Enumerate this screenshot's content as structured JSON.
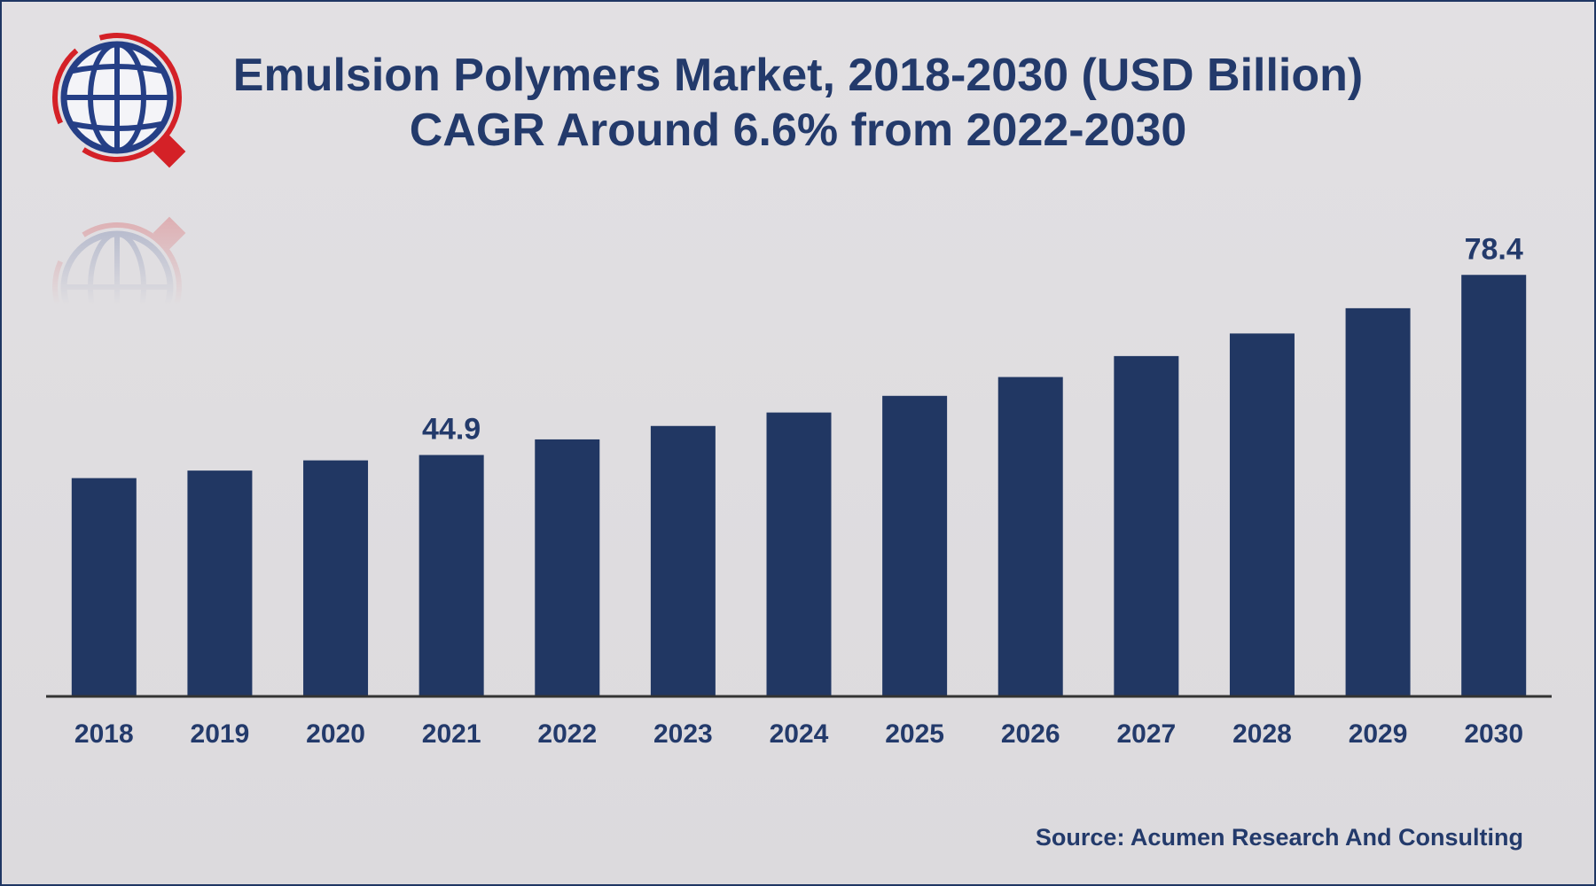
{
  "colors": {
    "bar": "#213763",
    "text": "#233a6b",
    "logo_blue": "#253f86",
    "logo_red": "#d42127",
    "axis": "#333333"
  },
  "logo_icon": "globe-logo-icon",
  "chart_data": {
    "type": "bar",
    "title": "Emulsion Polymers Market, 2018-2030 (USD Billion)",
    "subtitle": "CAGR Around 6.6% from 2022-2030",
    "categories": [
      "2018",
      "2019",
      "2020",
      "2021",
      "2022",
      "2023",
      "2024",
      "2025",
      "2026",
      "2027",
      "2028",
      "2029",
      "2030"
    ],
    "values": [
      40.6,
      42.0,
      43.9,
      44.9,
      47.8,
      50.3,
      52.8,
      55.9,
      59.4,
      63.3,
      67.5,
      72.2,
      78.4
    ],
    "data_labels": [
      {
        "category": "2021",
        "text": "44.9"
      },
      {
        "category": "2030",
        "text": "78.4"
      }
    ],
    "ylim": [
      0,
      88
    ],
    "grid": false,
    "legend": "none",
    "source": "Source: Acumen Research And Consulting"
  }
}
